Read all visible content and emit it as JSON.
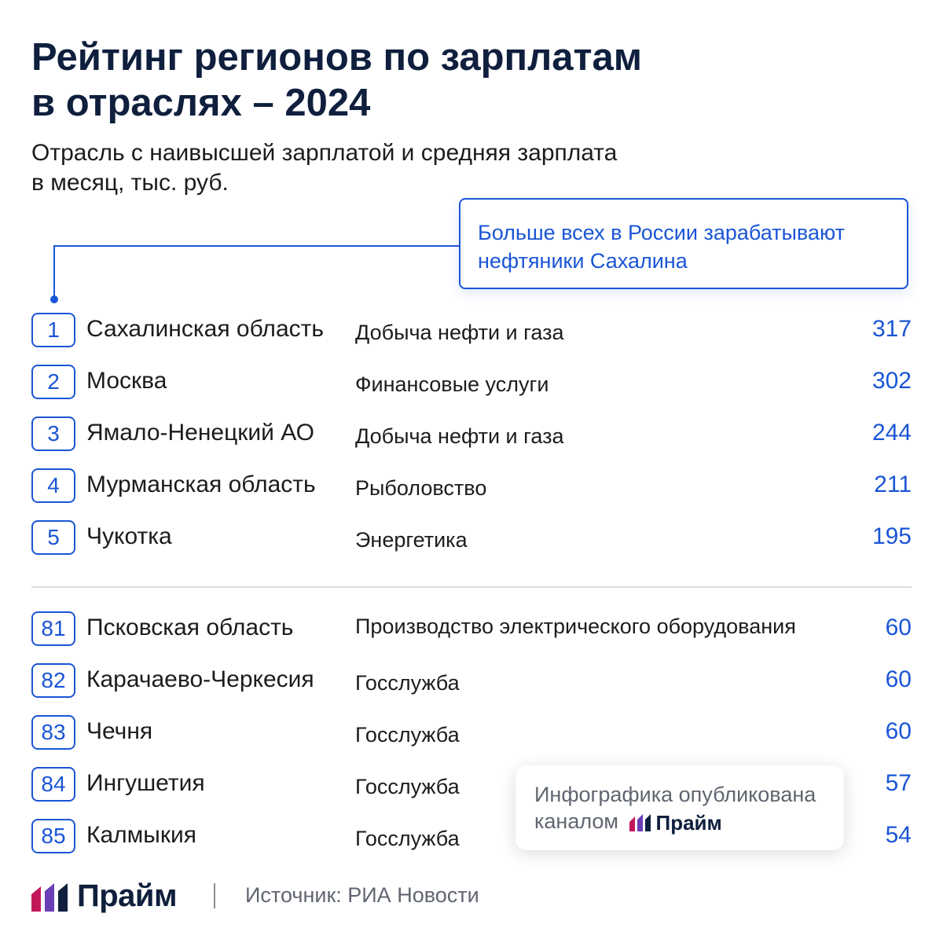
{
  "title": {
    "line1": "Рейтинг регионов по зарплатам",
    "line2": "в отраслях – 2024"
  },
  "subtitle": {
    "line1": "Отрасль с наивысшей зарплатой и средняя зарплата",
    "line2": "в месяц, тыс. руб."
  },
  "callout": {
    "line1": "Больше всех в России зарабатывают",
    "line2": "нефтяники Сахалина"
  },
  "top": [
    {
      "rank": "1",
      "region": "Сахалинская область",
      "industry": "Добыча нефти и газа",
      "value": "317"
    },
    {
      "rank": "2",
      "region": "Москва",
      "industry": "Финансовые услуги",
      "value": "302"
    },
    {
      "rank": "3",
      "region": "Ямало-Ненецкий АО",
      "industry": "Добыча нефти и газа",
      "value": "244"
    },
    {
      "rank": "4",
      "region": "Мурманская область",
      "industry": "Рыболовство",
      "value": "211"
    },
    {
      "rank": "5",
      "region": "Чукотка",
      "industry": "Энергетика",
      "value": "195"
    }
  ],
  "bottom": [
    {
      "rank": "81",
      "region": "Псковская область",
      "industry": "Производство электрического оборудования",
      "value": "60"
    },
    {
      "rank": "82",
      "region": "Карачаево-Черкесия",
      "industry": "Госслужба",
      "value": "60"
    },
    {
      "rank": "83",
      "region": "Чечня",
      "industry": "Госслужба",
      "value": "60"
    },
    {
      "rank": "84",
      "region": "Ингушетия",
      "industry": "Госслужба",
      "value": "57"
    },
    {
      "rank": "85",
      "region": "Калмыкия",
      "industry": "Госслужба",
      "value": "54"
    }
  ],
  "overlay": {
    "line1": "Инфографика опубликована",
    "line2": "каналом",
    "brand": "Прайм"
  },
  "footer": {
    "brand": "Прайм",
    "source": "Источник: РИА Новости"
  },
  "colors": {
    "accent": "#1a55d6",
    "title": "#0f1f3d",
    "logo_magenta": "#c2185b",
    "logo_purple": "#6a3fb5",
    "logo_navy": "#0f1f3d"
  },
  "icons": {
    "brand_logo": "prime-logo-icon"
  }
}
